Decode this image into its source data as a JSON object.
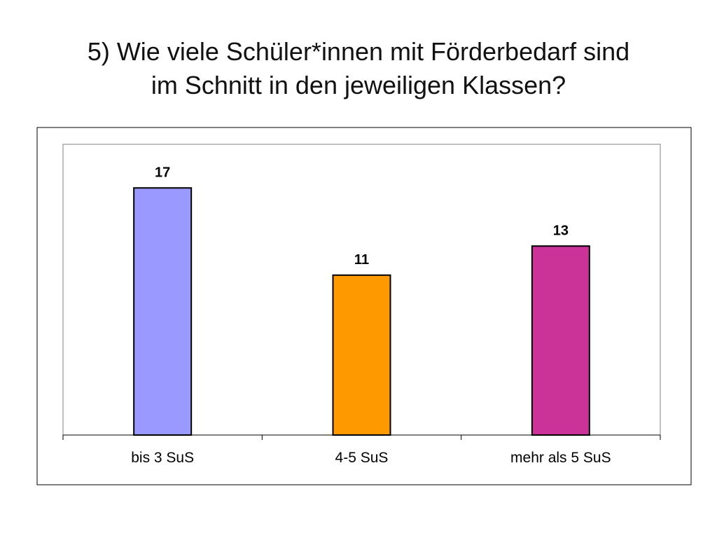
{
  "title_lines": [
    "5) Wie viele Schüler*innen mit Förderbedarf sind",
    "im Schnitt in den jeweiligen Klassen?"
  ],
  "chart_data": {
    "type": "bar",
    "title": "5) Wie viele Schüler*innen mit Förderbedarf sind im Schnitt in den jeweiligen Klassen?",
    "categories": [
      "bis 3 SuS",
      "4-5 SuS",
      "mehr als 5 SuS"
    ],
    "values": [
      17,
      11,
      13
    ],
    "data_labels": [
      "17",
      "11",
      "13"
    ],
    "colors": [
      "#9999FF",
      "#FF9900",
      "#CC3399"
    ],
    "xlabel": "",
    "ylabel": "",
    "ylim": [
      0,
      20
    ],
    "grid": false,
    "legend": "none"
  }
}
